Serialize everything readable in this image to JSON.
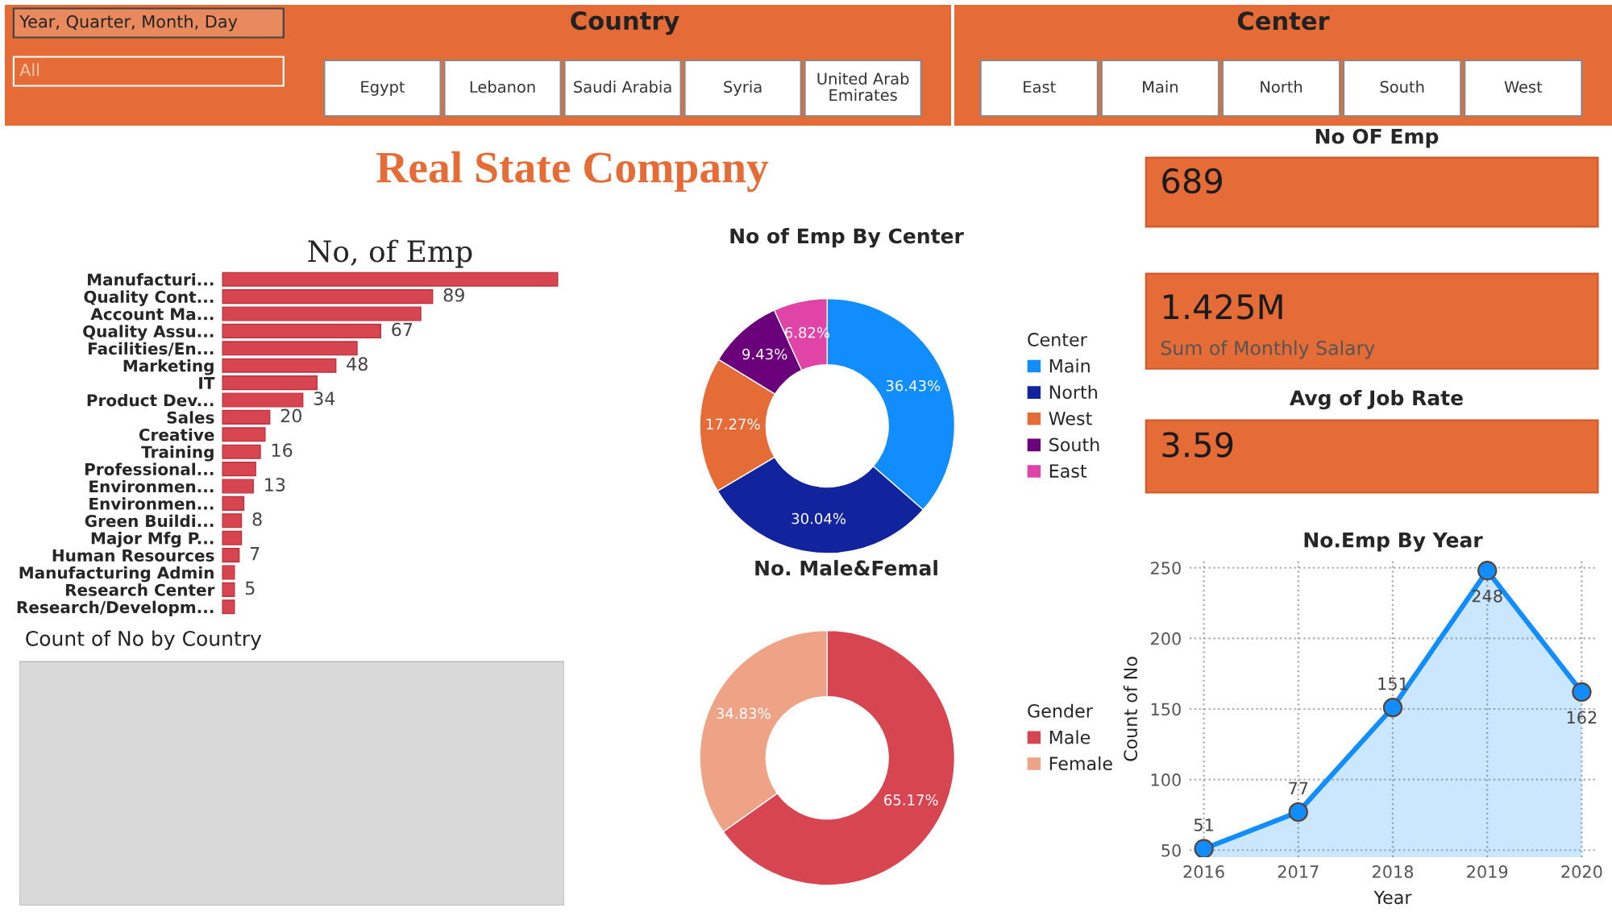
{
  "chart_data": [
    {
      "type": "other",
      "annotations": [
        "Year, Quarter, Month, Day",
        "All"
      ]
    },
    {
      "type": "other",
      "title": "Country",
      "annotations": [
        "Egypt",
        "Lebanon",
        "Saudi Arabia",
        "Syria",
        "United Arab\nEmirates"
      ]
    },
    {
      "type": "other",
      "title": "Center",
      "annotations": [
        "East",
        "Main",
        "North",
        "South",
        "West"
      ]
    },
    {
      "type": "other",
      "title": "Real State Company"
    },
    {
      "type": "other",
      "title": "No OF Emp",
      "annotations": [
        "689"
      ]
    },
    {
      "type": "bar",
      "orientation": "horizontal",
      "title": "No, of Emp",
      "color": "#d64550",
      "categories": [
        "Manufacturi...",
        "Quality Cont...",
        "Account Ma...",
        "Quality Assu...",
        "Facilities/En...",
        "Marketing",
        "IT",
        "Product Dev...",
        "Sales",
        "Creative",
        "Training",
        "Professional...",
        "Environmen...",
        "Environmen...",
        "Green Buildi...",
        "Major Mfg P...",
        "Human Resources",
        "Manufacturing Admin",
        "Research Center",
        "Research/Developm..."
      ],
      "values": [
        142,
        89,
        84,
        67,
        57,
        48,
        40,
        34,
        20,
        18,
        16,
        14,
        13,
        9,
        8,
        8,
        7,
        5,
        5,
        5
      ],
      "value_labels": [
        null,
        "89",
        null,
        "67",
        null,
        "48",
        null,
        "34",
        "20",
        null,
        "16",
        null,
        "13",
        null,
        "8",
        null,
        "7",
        null,
        "5",
        null
      ]
    },
    {
      "type": "donut",
      "title": "No of Emp By Center",
      "legend_title": "Center",
      "legend": "right",
      "categories": [
        "Main",
        "North",
        "West",
        "South",
        "East"
      ],
      "values": [
        36.43,
        30.04,
        17.27,
        9.43,
        6.82
      ],
      "colors": [
        "#118dff",
        "#12239e",
        "#e66c37",
        "#6b007b",
        "#e044a7"
      ],
      "value_labels": [
        "36.43%",
        "30.04%",
        "17.27%",
        "9.43%",
        "6.82%"
      ]
    },
    {
      "type": "donut",
      "title": "No. Male&Femal",
      "legend_title": "Gender",
      "legend": "right",
      "categories": [
        "Male",
        "Female"
      ],
      "values": [
        65.17,
        34.83
      ],
      "colors": [
        "#d64550",
        "#eea386"
      ],
      "value_labels": [
        "65.17%",
        "34.83%"
      ]
    },
    {
      "type": "other",
      "annotations": [
        "1.425M",
        "Sum of Monthly Salary"
      ]
    },
    {
      "type": "other",
      "title": "Avg of Job Rate",
      "annotations": [
        "3.59"
      ]
    },
    {
      "type": "area",
      "title": "No.Emp By Year",
      "xlabel": "Year",
      "ylabel": "Count of No",
      "categories": [
        "2016",
        "2017",
        "2018",
        "2019",
        "2020"
      ],
      "series": [
        {
          "color": "#118dff",
          "values": [
            51,
            77,
            151,
            248,
            162
          ]
        }
      ],
      "ylim": [
        45,
        255
      ],
      "yticks": [
        50,
        100,
        150,
        200,
        250
      ],
      "grid": true,
      "marker": "circle",
      "data_labels": true
    },
    {
      "type": "other",
      "title": "Count of No by Country"
    }
  ]
}
